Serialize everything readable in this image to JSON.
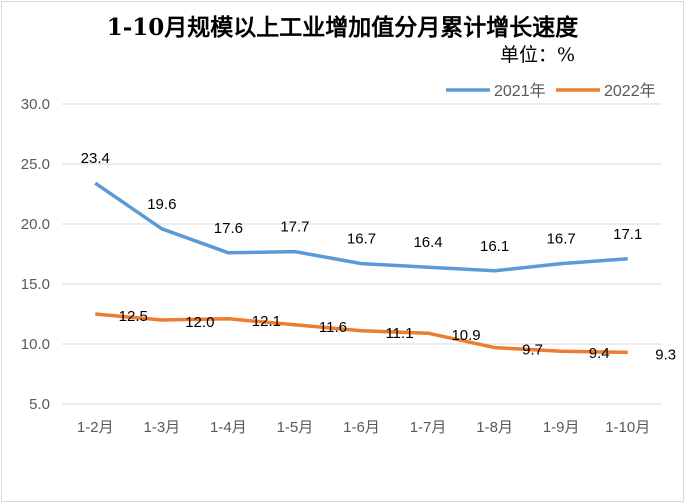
{
  "chart_data": {
    "type": "line",
    "title": "1-10月规模以上工业增加值分月累计增长速度",
    "unit_label": "单位：%",
    "categories": [
      "1-2月",
      "1-3月",
      "1-4月",
      "1-5月",
      "1-6月",
      "1-7月",
      "1-8月",
      "1-9月",
      "1-10月"
    ],
    "ylim": [
      5.0,
      30.0
    ],
    "yticks": [
      "5.0",
      "10.0",
      "15.0",
      "20.0",
      "25.0",
      "30.0"
    ],
    "grid": true,
    "legend_position": "top-right",
    "series": [
      {
        "name": "2021年",
        "color": "#5b9bd5",
        "values": [
          23.4,
          19.6,
          17.6,
          17.7,
          16.7,
          16.4,
          16.1,
          16.7,
          17.1
        ]
      },
      {
        "name": "2022年",
        "color": "#ed7d31",
        "values": [
          12.5,
          12.0,
          12.1,
          11.6,
          11.1,
          10.9,
          9.7,
          9.4,
          9.3
        ]
      }
    ]
  }
}
